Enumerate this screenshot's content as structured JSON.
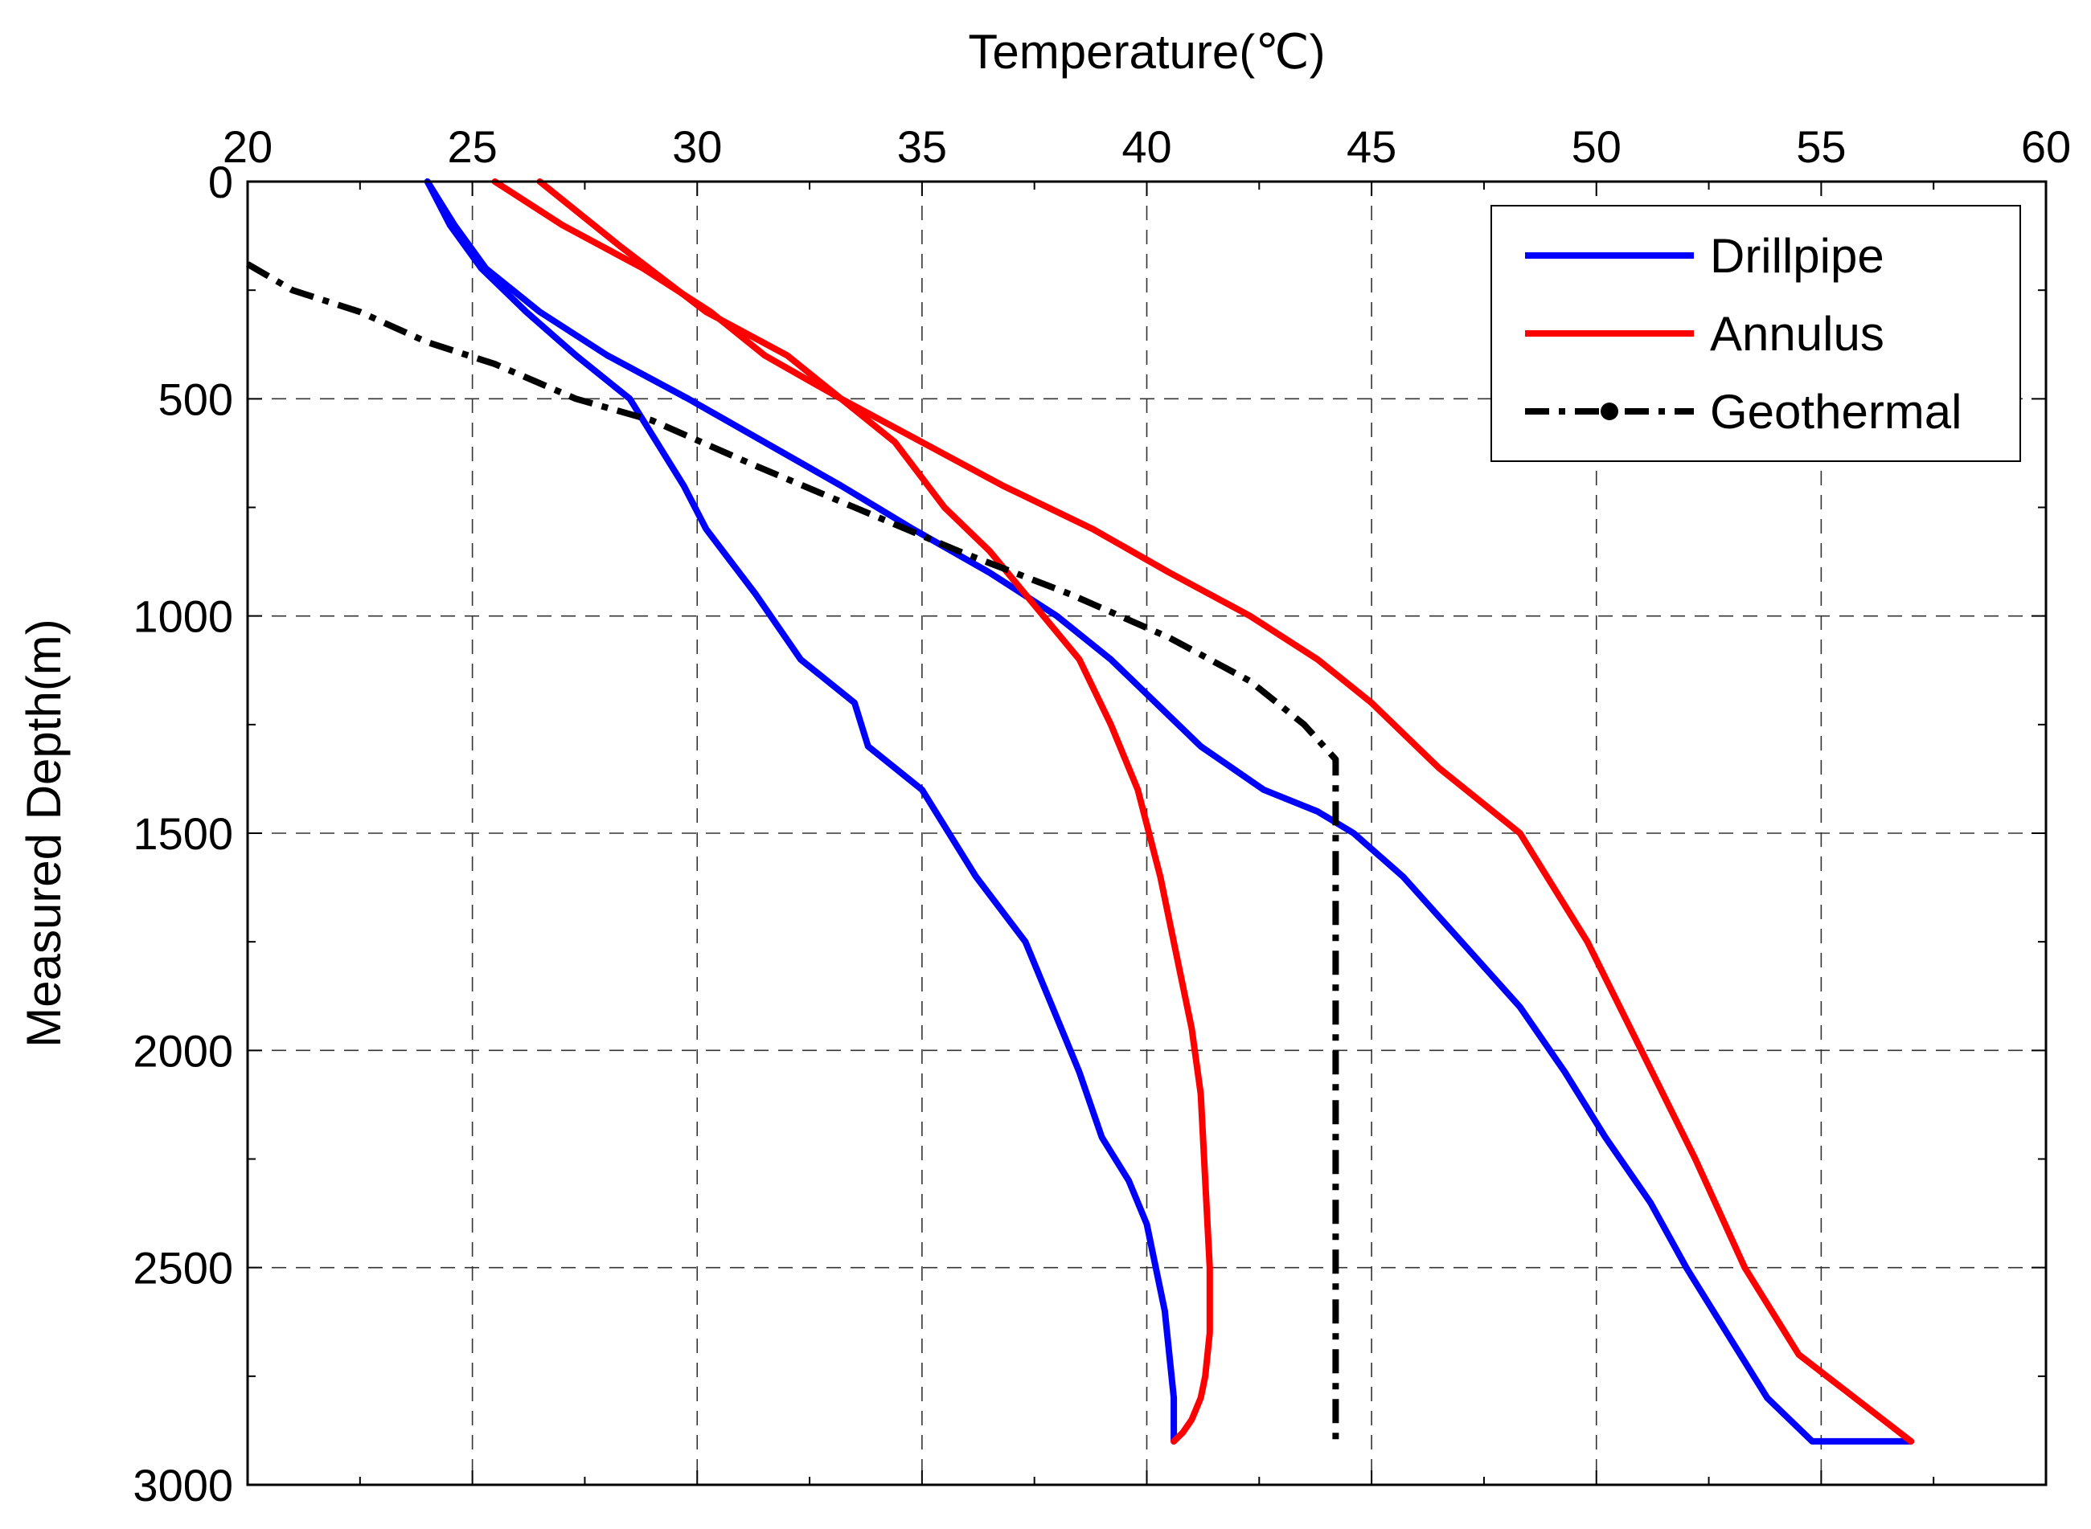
{
  "chart_data": {
    "type": "line",
    "title": "",
    "xlabel": "Temperature(℃)",
    "ylabel": "Measured Depth(m)",
    "xlim": [
      20,
      60
    ],
    "ylim": [
      0,
      3000
    ],
    "y_inverted": true,
    "x_axis_position": "top",
    "grid": true,
    "legend_position": "top-right",
    "x_ticks": [
      20,
      25,
      30,
      35,
      40,
      45,
      50,
      55,
      60
    ],
    "y_ticks": [
      0,
      500,
      1000,
      1500,
      2000,
      2500,
      3000
    ],
    "series": [
      {
        "name": "Drillpipe",
        "color": "#0000ff",
        "style": "solid",
        "x": [
          24.0,
          24.5,
          25.2,
          26.2,
          27.3,
          28.5,
          29.7,
          30.2,
          31.3,
          32.3,
          33.5,
          33.8,
          35.0,
          36.2,
          37.3,
          37.9,
          38.5,
          39.0,
          39.6,
          40.0,
          40.2,
          40.4,
          40.5,
          40.6,
          40.6,
          40.6
        ],
        "y": [
          0,
          100,
          200,
          300,
          400,
          500,
          700,
          800,
          950,
          1100,
          1200,
          1300,
          1400,
          1600,
          1750,
          1900,
          2050,
          2200,
          2300,
          2400,
          2500,
          2600,
          2700,
          2800,
          2850,
          2900
        ]
      },
      {
        "name": "Drillpipe",
        "color": "#0000ff",
        "style": "solid",
        "x": [
          24.0,
          24.6,
          25.3,
          26.5,
          28.0,
          29.8,
          31.5,
          33.2,
          34.8,
          36.5,
          38.0,
          39.2,
          40.2,
          41.2,
          42.6,
          43.8,
          44.6,
          45.7,
          47.0,
          48.3,
          49.3,
          50.2,
          51.2,
          52.0,
          52.9,
          53.8,
          54.8,
          57.0
        ],
        "y": [
          0,
          100,
          200,
          300,
          400,
          500,
          600,
          700,
          800,
          900,
          1000,
          1100,
          1200,
          1300,
          1400,
          1450,
          1500,
          1600,
          1750,
          1900,
          2050,
          2200,
          2350,
          2500,
          2650,
          2800,
          2900,
          2900
        ]
      },
      {
        "name": "Annulus",
        "color": "#ff0000",
        "style": "solid",
        "x": [
          25.5,
          27.0,
          28.8,
          30.3,
          31.5,
          33.2,
          34.4,
          35.5,
          36.5,
          37.7,
          38.5,
          39.2,
          39.8,
          40.3,
          40.7,
          41.0,
          41.2,
          41.3,
          41.4,
          41.4,
          41.3,
          41.2,
          41.0,
          40.8,
          40.6
        ],
        "y": [
          0,
          100,
          200,
          300,
          400,
          500,
          600,
          750,
          850,
          1000,
          1100,
          1250,
          1400,
          1600,
          1800,
          1950,
          2100,
          2300,
          2500,
          2650,
          2750,
          2800,
          2850,
          2880,
          2900
        ]
      },
      {
        "name": "Annulus",
        "color": "#ff0000",
        "style": "solid",
        "x": [
          26.5,
          28.3,
          30.2,
          32.0,
          33.2,
          35.0,
          36.8,
          38.8,
          40.5,
          42.3,
          43.8,
          45.0,
          46.5,
          48.3,
          49.8,
          51.0,
          52.2,
          53.3,
          54.5,
          57.0
        ],
        "y": [
          0,
          150,
          300,
          400,
          500,
          600,
          700,
          800,
          900,
          1000,
          1100,
          1200,
          1350,
          1500,
          1750,
          2000,
          2250,
          2500,
          2700,
          2900
        ]
      },
      {
        "name": "Geothermal",
        "color": "#000000",
        "style": "dashdot",
        "x": [
          20.0,
          21.0,
          22.5,
          24.0,
          25.5,
          27.3,
          29.0,
          31.2,
          33.5,
          35.8,
          38.3,
          40.5,
          42.3,
          43.5,
          44.2,
          44.2,
          44.2
        ],
        "y": [
          190,
          250,
          300,
          370,
          420,
          500,
          550,
          650,
          750,
          850,
          950,
          1050,
          1150,
          1250,
          1330,
          1500,
          2900
        ]
      }
    ],
    "legend": [
      {
        "label": "Drillpipe",
        "color": "#0000ff",
        "style": "solid"
      },
      {
        "label": "Annulus",
        "color": "#ff0000",
        "style": "solid"
      },
      {
        "label": "Geothermal",
        "color": "#000000",
        "style": "dashdot"
      }
    ]
  }
}
